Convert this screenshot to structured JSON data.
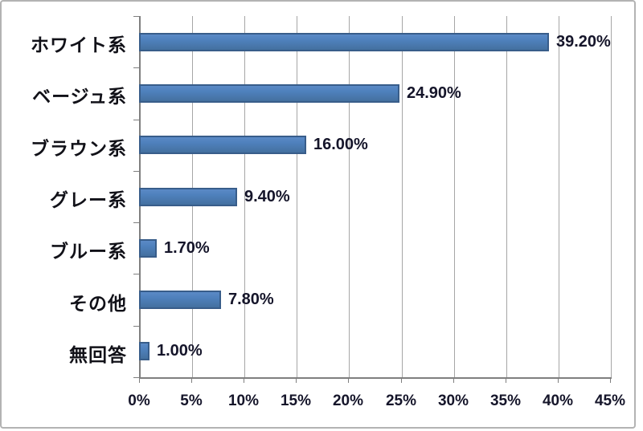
{
  "chart_data": {
    "type": "bar",
    "orientation": "horizontal",
    "title": "",
    "xlabel": "",
    "ylabel": "",
    "categories": [
      "ホワイト系",
      "ベージュ系",
      "ブラウン系",
      "グレー系",
      "ブルー系",
      "その他",
      "無回答"
    ],
    "values": [
      39.2,
      24.9,
      16.0,
      9.4,
      1.7,
      7.8,
      1.0
    ],
    "data_labels": [
      "39.20%",
      "24.90%",
      "16.00%",
      "9.40%",
      "1.70%",
      "7.80%",
      "1.00%"
    ],
    "x_ticks": [
      "0%",
      "5%",
      "10%",
      "15%",
      "20%",
      "25%",
      "30%",
      "35%",
      "40%",
      "45%"
    ],
    "x_tick_values": [
      0,
      5,
      10,
      15,
      20,
      25,
      30,
      35,
      40,
      45
    ],
    "xlim": [
      0,
      45
    ],
    "grid": true,
    "legend": false,
    "colors": {
      "bar_fill": "#4F81BD",
      "bar_border": "#385D8A",
      "gridline": "#A6A6A6",
      "axis": "#7F7F7F",
      "label_text": "#15152A",
      "category_text": "#111118",
      "frame_border": "#B3B3B3",
      "background": "#FFFFFF"
    }
  }
}
